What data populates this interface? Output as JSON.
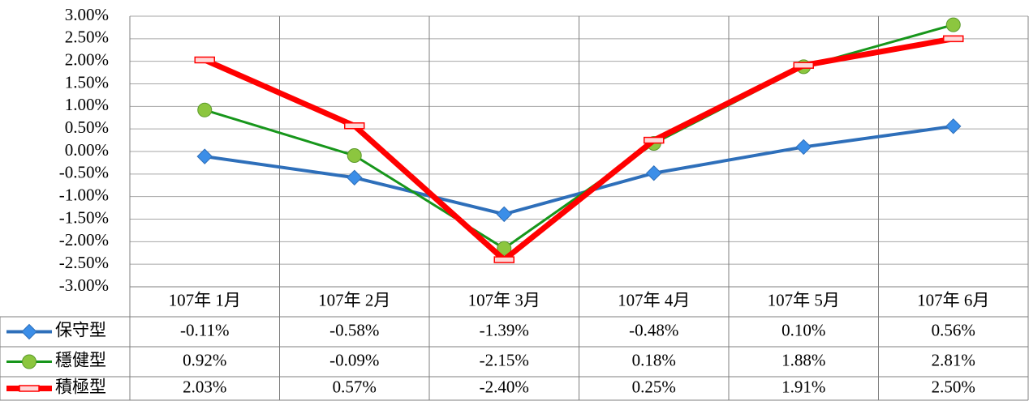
{
  "chart_data": {
    "type": "line",
    "categories": [
      "107年 1月",
      "107年 2月",
      "107年 3月",
      "107年 4月",
      "107年 5月",
      "107年 6月"
    ],
    "series": [
      {
        "name": "保守型",
        "color": "#2e6fba",
        "marker_color": "#3b8ee8",
        "marker": "diamond",
        "values": [
          -0.11,
          -0.58,
          -1.39,
          -0.48,
          0.1,
          0.56
        ],
        "value_labels": [
          "-0.11%",
          "-0.58%",
          "-1.39%",
          "-0.48%",
          "0.10%",
          "0.56%"
        ]
      },
      {
        "name": "穩健型",
        "color": "#17961b",
        "marker_color": "#8cc63f",
        "marker": "circle",
        "values": [
          0.92,
          -0.09,
          -2.15,
          0.18,
          1.88,
          2.81
        ],
        "value_labels": [
          "0.92%",
          "-0.09%",
          "-2.15%",
          "0.18%",
          "1.88%",
          "2.81%"
        ]
      },
      {
        "name": "積極型",
        "color": "#ff0000",
        "marker_color": "#ffd7d7",
        "marker": "dash",
        "values": [
          2.03,
          0.57,
          -2.4,
          0.25,
          1.91,
          2.5
        ],
        "value_labels": [
          "2.03%",
          "0.57%",
          "-2.40%",
          "0.25%",
          "1.91%",
          "2.50%"
        ]
      }
    ],
    "ylim": [
      -3,
      3
    ],
    "yticks": [
      {
        "value": -3,
        "label": "-3.00%"
      },
      {
        "value": -2.5,
        "label": "-2.50%"
      },
      {
        "value": -2,
        "label": "-2.00%"
      },
      {
        "value": -1.5,
        "label": "-1.50%"
      },
      {
        "value": -1,
        "label": "-1.00%"
      },
      {
        "value": -0.5,
        "label": "-0.50%"
      },
      {
        "value": 0,
        "label": "0.00%"
      },
      {
        "value": 0.5,
        "label": "0.50%"
      },
      {
        "value": 1,
        "label": "1.00%"
      },
      {
        "value": 1.5,
        "label": "1.50%"
      },
      {
        "value": 2,
        "label": "2.00%"
      },
      {
        "value": 2.5,
        "label": "2.50%"
      },
      {
        "value": 3,
        "label": "3.00%"
      }
    ],
    "grid": true
  }
}
